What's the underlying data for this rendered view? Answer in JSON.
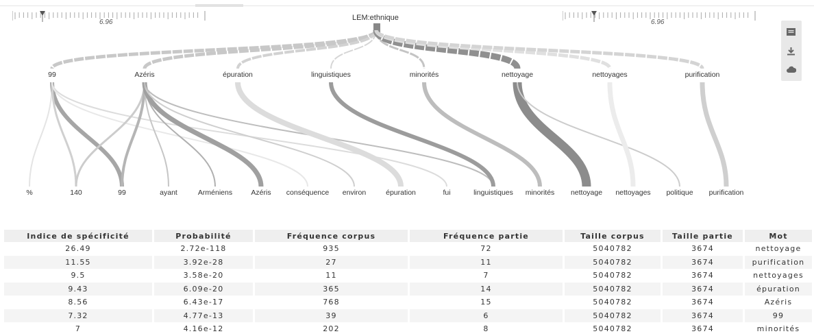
{
  "slider_left": {
    "value": "6.96"
  },
  "slider_right": {
    "value": "6.96"
  },
  "tree": {
    "root": "LEM:ethnique",
    "level1": [
      "99",
      "Azéris",
      "épuration",
      "linguistiques",
      "minorités",
      "nettoyage",
      "nettoyages",
      "purification"
    ],
    "level2": [
      "%",
      "140",
      "99",
      "ayant",
      "Arméniens",
      "Azéris",
      "conséquence",
      "environ",
      "épuration",
      "fui",
      "linguistiques",
      "minorités",
      "nettoyage",
      "nettoyages",
      "politique",
      "purification"
    ]
  },
  "toolbox": {
    "icons": [
      "data-view-icon",
      "download-icon",
      "cloud-icon"
    ]
  },
  "table": {
    "headers": [
      "Indice de spécificité",
      "Probabilité",
      "Fréquence corpus",
      "Fréquence partie",
      "Taille corpus",
      "Taille partie",
      "Mot"
    ],
    "rows": [
      [
        "26.49",
        "2.72e-118",
        "935",
        "72",
        "5040782",
        "3674",
        "nettoyage"
      ],
      [
        "11.55",
        "3.92e-28",
        "27",
        "11",
        "5040782",
        "3674",
        "purification"
      ],
      [
        "9.5",
        "3.58e-20",
        "11",
        "7",
        "5040782",
        "3674",
        "nettoyages"
      ],
      [
        "9.43",
        "6.09e-20",
        "365",
        "14",
        "5040782",
        "3674",
        "épuration"
      ],
      [
        "8.56",
        "6.43e-17",
        "768",
        "15",
        "5040782",
        "3674",
        "Azéris"
      ],
      [
        "7.32",
        "4.77e-13",
        "39",
        "6",
        "5040782",
        "3674",
        "99"
      ],
      [
        "7",
        "4.16e-12",
        "202",
        "8",
        "5040782",
        "3674",
        "minorités"
      ]
    ]
  }
}
